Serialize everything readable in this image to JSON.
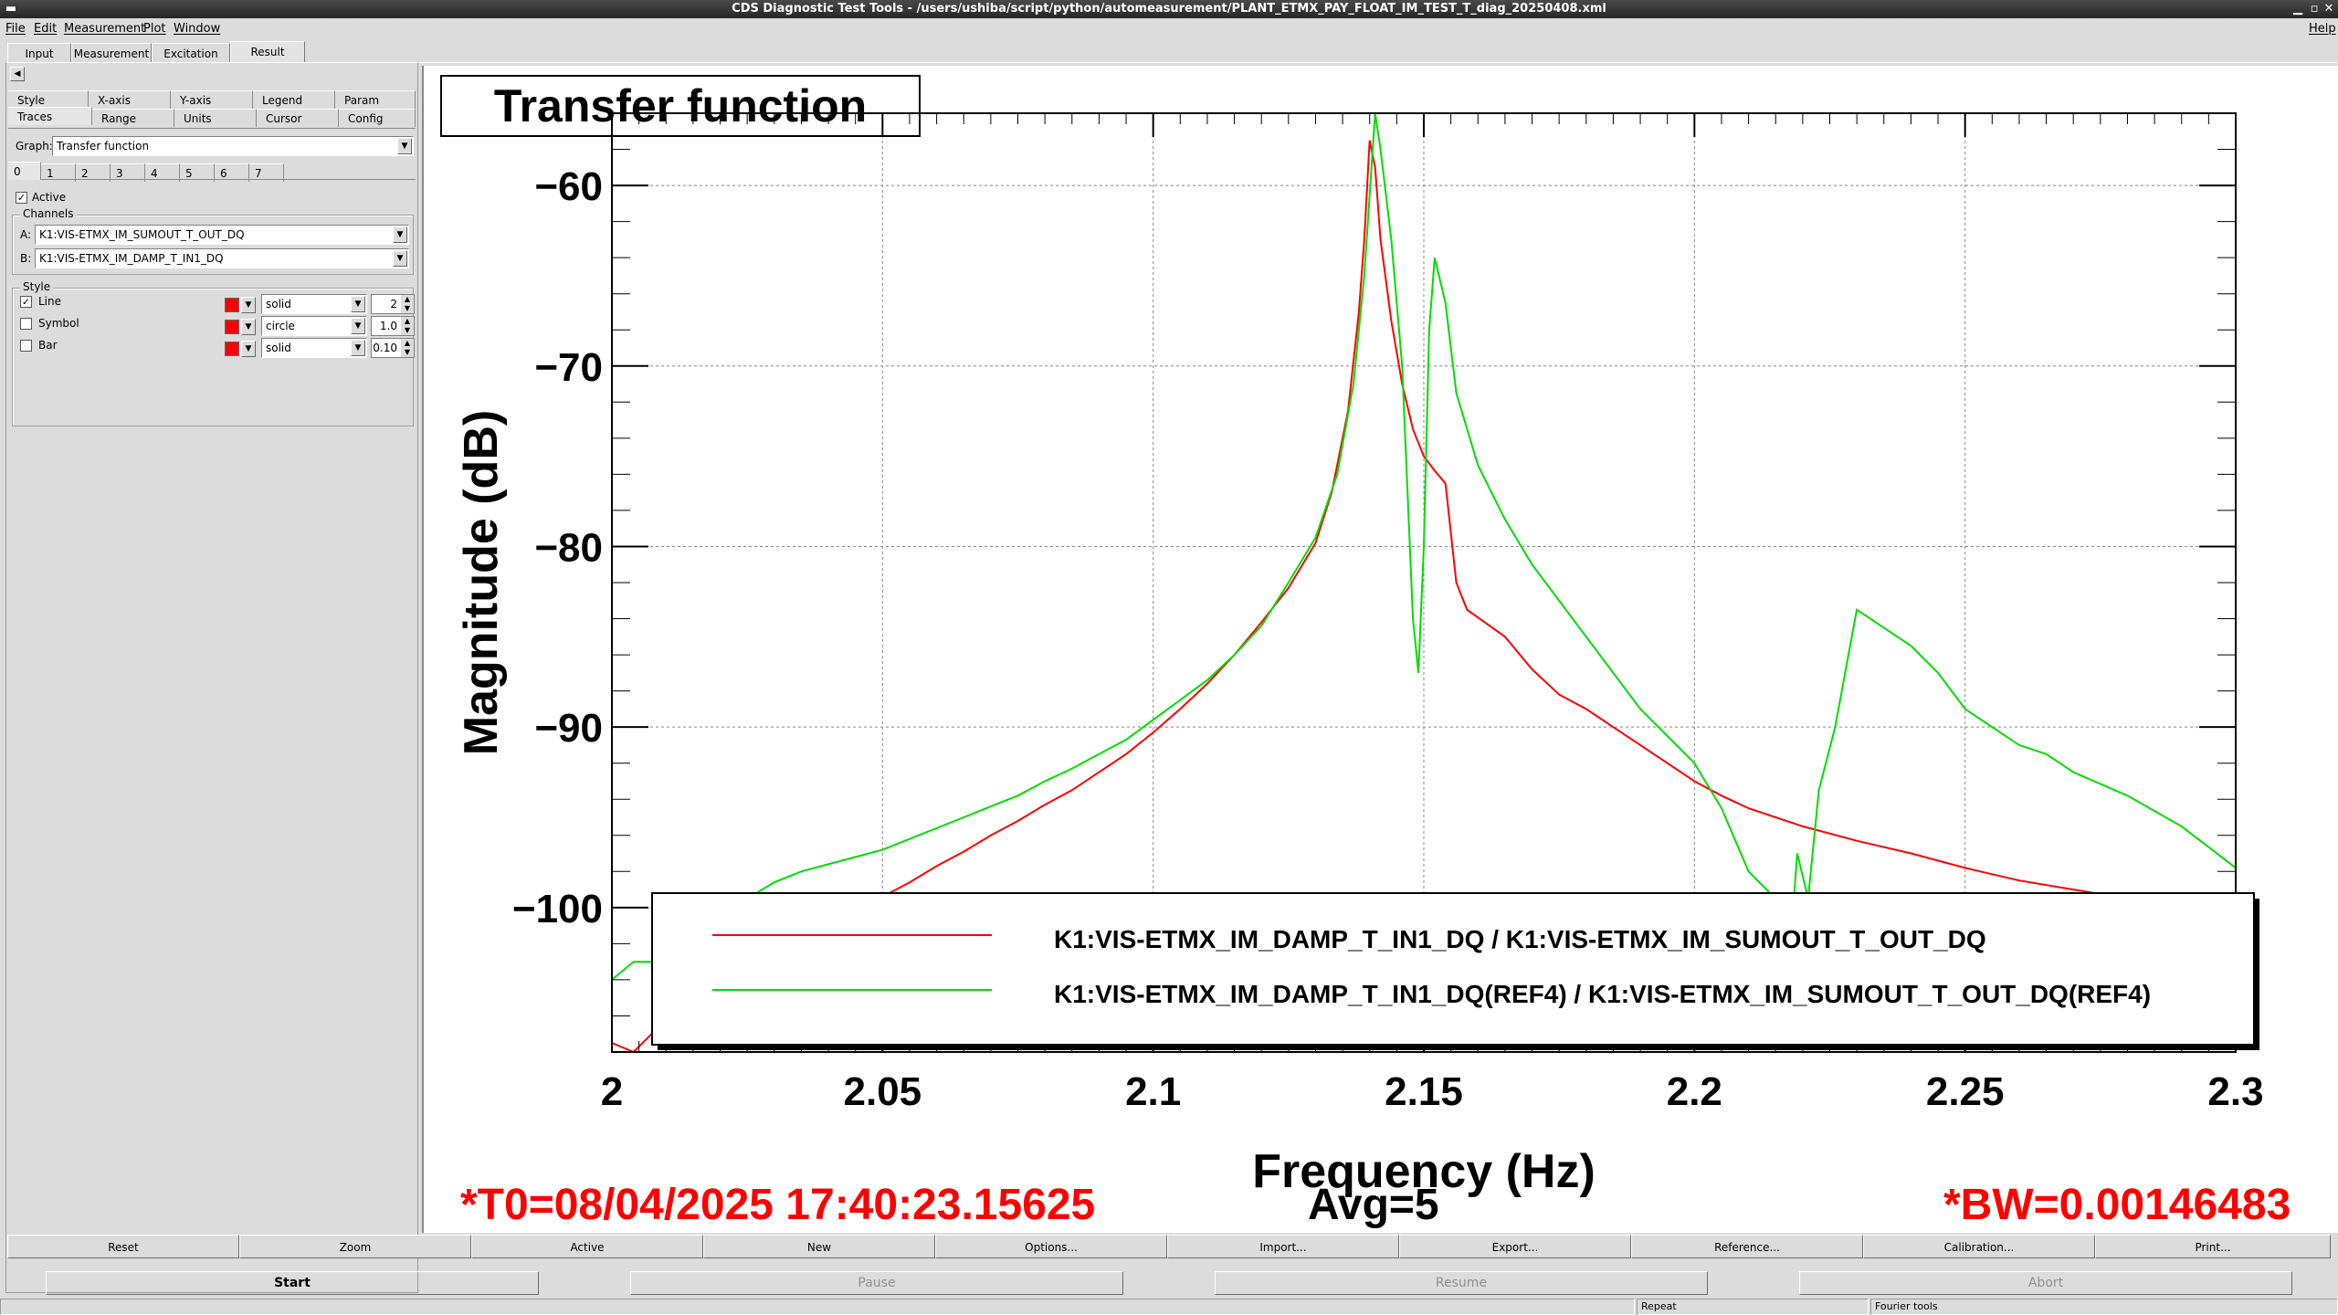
{
  "window": {
    "title": "CDS Diagnostic Test Tools - /users/ushiba/script/python/automeasurement/PLANT_ETMX_PAY_FLOAT_IM_TEST_T_diag_20250408.xml"
  },
  "menubar": {
    "items": [
      "File",
      "Edit",
      "Measurement",
      "Plot",
      "Window"
    ],
    "help": "Help"
  },
  "main_tabs": {
    "items": [
      "Input",
      "Measurement",
      "Excitation",
      "Result"
    ],
    "selected": "Result"
  },
  "settings": {
    "tabs_row1": [
      "Style",
      "X-axis",
      "Y-axis",
      "Legend",
      "Param"
    ],
    "tabs_row2": [
      "Traces",
      "Range",
      "Units",
      "Cursor",
      "Config"
    ],
    "graph_label": "Graph:",
    "graph_value": "Transfer function",
    "trace_tabs": [
      "0",
      "1",
      "2",
      "3",
      "4",
      "5",
      "6",
      "7"
    ],
    "active_label": "Active",
    "channels_label": "Channels",
    "channel_a_label": "A:",
    "channel_a": "K1:VIS-ETMX_IM_SUMOUT_T_OUT_DQ",
    "channel_b_label": "B:",
    "channel_b": "K1:VIS-ETMX_IM_DAMP_T_IN1_DQ",
    "style_label": "Style",
    "style_rows": [
      {
        "label": "Line",
        "checked": true,
        "color": "#ff0000",
        "type": "solid",
        "size": "2"
      },
      {
        "label": "Symbol",
        "checked": false,
        "color": "#ff0000",
        "type": "circle",
        "size": "1.0"
      },
      {
        "label": "Bar",
        "checked": false,
        "color": "#ff0000",
        "type": "solid",
        "size": "0.10"
      }
    ]
  },
  "plot": {
    "title": "Transfer function",
    "t0": "*T0=08/04/2025 17:40:23.15625",
    "avg": "Avg=5",
    "bw": "*BW=0.00146483"
  },
  "chart_data": {
    "type": "line",
    "title": "Transfer function",
    "xlabel": "Frequency (Hz)",
    "ylabel": "Magnitude (dB)",
    "xlim": [
      2.0,
      2.3
    ],
    "ylim": [
      -108,
      -56
    ],
    "x_ticks": [
      "2",
      "2.05",
      "2.1",
      "2.15",
      "2.2",
      "2.25",
      "2.3"
    ],
    "y_ticks": [
      "−60",
      "−70",
      "−80",
      "−90",
      "−100"
    ],
    "grid": true,
    "legend_position": "bottom",
    "series": [
      {
        "name": "K1:VIS-ETMX_IM_DAMP_T_IN1_DQ / K1:VIS-ETMX_IM_SUMOUT_T_OUT_DQ",
        "color": "#ff0000",
        "points": [
          [
            2.0,
            -107.5
          ],
          [
            2.004,
            -108.0
          ],
          [
            2.008,
            -106.8
          ],
          [
            2.012,
            -107.2
          ],
          [
            2.016,
            -106.0
          ],
          [
            2.02,
            -105.0
          ],
          [
            2.025,
            -103.5
          ],
          [
            2.03,
            -102.4
          ],
          [
            2.035,
            -101.5
          ],
          [
            2.04,
            -100.5
          ],
          [
            2.045,
            -99.9
          ],
          [
            2.05,
            -99.4
          ],
          [
            2.055,
            -98.6
          ],
          [
            2.06,
            -97.7
          ],
          [
            2.065,
            -96.9
          ],
          [
            2.07,
            -96.0
          ],
          [
            2.075,
            -95.2
          ],
          [
            2.08,
            -94.3
          ],
          [
            2.085,
            -93.5
          ],
          [
            2.09,
            -92.5
          ],
          [
            2.095,
            -91.5
          ],
          [
            2.1,
            -90.3
          ],
          [
            2.105,
            -89.0
          ],
          [
            2.11,
            -87.6
          ],
          [
            2.115,
            -86.0
          ],
          [
            2.12,
            -84.2
          ],
          [
            2.125,
            -82.3
          ],
          [
            2.13,
            -79.8
          ],
          [
            2.133,
            -77.0
          ],
          [
            2.136,
            -72.5
          ],
          [
            2.138,
            -67.0
          ],
          [
            2.139,
            -63.0
          ],
          [
            2.14,
            -57.5
          ],
          [
            2.141,
            -59.0
          ],
          [
            2.142,
            -63.0
          ],
          [
            2.144,
            -67.5
          ],
          [
            2.146,
            -71.0
          ],
          [
            2.148,
            -73.5
          ],
          [
            2.15,
            -75.0
          ],
          [
            2.152,
            -75.8
          ],
          [
            2.154,
            -76.5
          ],
          [
            2.156,
            -82.0
          ],
          [
            2.158,
            -83.5
          ],
          [
            2.165,
            -85.0
          ],
          [
            2.17,
            -86.8
          ],
          [
            2.175,
            -88.2
          ],
          [
            2.18,
            -89.0
          ],
          [
            2.185,
            -90.0
          ],
          [
            2.19,
            -91.0
          ],
          [
            2.195,
            -92.0
          ],
          [
            2.2,
            -93.0
          ],
          [
            2.205,
            -93.8
          ],
          [
            2.21,
            -94.5
          ],
          [
            2.215,
            -95.0
          ],
          [
            2.22,
            -95.5
          ],
          [
            2.23,
            -96.3
          ],
          [
            2.24,
            -97.0
          ],
          [
            2.25,
            -97.8
          ],
          [
            2.26,
            -98.5
          ],
          [
            2.27,
            -99.0
          ],
          [
            2.28,
            -99.5
          ],
          [
            2.29,
            -100.0
          ],
          [
            2.3,
            -100.8
          ]
        ]
      },
      {
        "name": "K1:VIS-ETMX_IM_DAMP_T_IN1_DQ(REF4) / K1:VIS-ETMX_IM_SUMOUT_T_OUT_DQ(REF4)",
        "color": "#00dd00",
        "points": [
          [
            2.0,
            -104.0
          ],
          [
            2.004,
            -103.0
          ],
          [
            2.008,
            -103.0
          ],
          [
            2.012,
            -102.5
          ],
          [
            2.016,
            -102.0
          ],
          [
            2.02,
            -101.0
          ],
          [
            2.025,
            -99.5
          ],
          [
            2.03,
            -98.6
          ],
          [
            2.035,
            -98.0
          ],
          [
            2.04,
            -97.6
          ],
          [
            2.045,
            -97.2
          ],
          [
            2.05,
            -96.8
          ],
          [
            2.055,
            -96.2
          ],
          [
            2.06,
            -95.6
          ],
          [
            2.065,
            -95.0
          ],
          [
            2.07,
            -94.4
          ],
          [
            2.075,
            -93.8
          ],
          [
            2.08,
            -93.0
          ],
          [
            2.085,
            -92.3
          ],
          [
            2.09,
            -91.5
          ],
          [
            2.095,
            -90.7
          ],
          [
            2.1,
            -89.6
          ],
          [
            2.105,
            -88.5
          ],
          [
            2.11,
            -87.4
          ],
          [
            2.115,
            -86.0
          ],
          [
            2.12,
            -84.4
          ],
          [
            2.125,
            -82.0
          ],
          [
            2.13,
            -79.5
          ],
          [
            2.134,
            -76.0
          ],
          [
            2.137,
            -71.0
          ],
          [
            2.139,
            -65.0
          ],
          [
            2.141,
            -56.0
          ],
          [
            2.142,
            -58.0
          ],
          [
            2.144,
            -63.0
          ],
          [
            2.146,
            -70.0
          ],
          [
            2.148,
            -84.0
          ],
          [
            2.149,
            -87.0
          ],
          [
            2.15,
            -80.0
          ],
          [
            2.151,
            -68.0
          ],
          [
            2.152,
            -64.0
          ],
          [
            2.154,
            -66.5
          ],
          [
            2.156,
            -71.5
          ],
          [
            2.16,
            -75.5
          ],
          [
            2.165,
            -78.5
          ],
          [
            2.17,
            -81.0
          ],
          [
            2.175,
            -83.0
          ],
          [
            2.18,
            -85.0
          ],
          [
            2.185,
            -87.0
          ],
          [
            2.19,
            -89.0
          ],
          [
            2.195,
            -90.5
          ],
          [
            2.2,
            -92.0
          ],
          [
            2.205,
            -94.5
          ],
          [
            2.21,
            -98.0
          ],
          [
            2.215,
            -99.5
          ],
          [
            2.218,
            -101.0
          ],
          [
            2.219,
            -97.0
          ],
          [
            2.221,
            -99.5
          ],
          [
            2.223,
            -93.5
          ],
          [
            2.226,
            -90.0
          ],
          [
            2.23,
            -83.5
          ],
          [
            2.235,
            -84.5
          ],
          [
            2.24,
            -85.5
          ],
          [
            2.245,
            -87.0
          ],
          [
            2.25,
            -89.0
          ],
          [
            2.255,
            -90.0
          ],
          [
            2.26,
            -91.0
          ],
          [
            2.265,
            -91.5
          ],
          [
            2.27,
            -92.5
          ],
          [
            2.28,
            -93.8
          ],
          [
            2.29,
            -95.5
          ],
          [
            2.3,
            -97.8
          ]
        ]
      }
    ]
  },
  "plot_buttons": [
    "Reset",
    "Zoom",
    "Active",
    "New",
    "Options...",
    "Import...",
    "Export...",
    "Reference...",
    "Calibration...",
    "Print..."
  ],
  "control_buttons": [
    "Start",
    "Pause",
    "Resume",
    "Abort"
  ],
  "status": {
    "repeat": "Repeat",
    "tools": "Fourier tools"
  }
}
